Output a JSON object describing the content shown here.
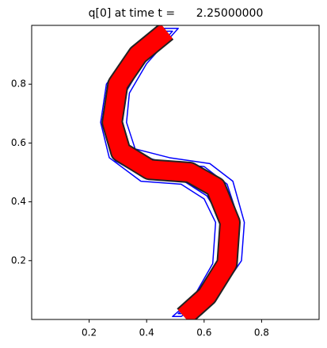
{
  "chart_data": {
    "type": "line",
    "title": "q[0] at time t =      2.25000000",
    "xlim": [
      0,
      1
    ],
    "ylim": [
      0,
      1
    ],
    "xticks": [
      0.2,
      0.4,
      0.6,
      0.8
    ],
    "yticks": [
      0.2,
      0.4,
      0.6,
      0.8
    ],
    "series": [
      {
        "color": "#0000ff",
        "x": [
          0.44,
          0.33,
          0.26,
          0.24,
          0.27,
          0.38,
          0.52,
          0.6,
          0.64,
          0.63,
          0.56,
          0.49,
          0.52,
          0.66,
          0.73,
          0.74,
          0.7,
          0.62,
          0.48,
          0.36,
          0.33,
          0.34,
          0.4,
          0.51,
          0.44
        ],
        "values": [
          0.99,
          0.9,
          0.8,
          0.67,
          0.55,
          0.47,
          0.46,
          0.41,
          0.33,
          0.19,
          0.07,
          0.01,
          0.01,
          0.1,
          0.2,
          0.33,
          0.47,
          0.53,
          0.55,
          0.58,
          0.67,
          0.77,
          0.87,
          0.99,
          0.99
        ]
      },
      {
        "color": "#0000ff",
        "x": [
          0.46,
          0.35,
          0.27,
          0.26,
          0.29,
          0.4,
          0.53,
          0.61,
          0.66,
          0.65,
          0.58,
          0.51,
          0.54,
          0.64,
          0.71,
          0.72,
          0.68,
          0.6,
          0.47,
          0.34,
          0.31,
          0.32,
          0.38,
          0.49,
          0.46
        ],
        "values": [
          0.98,
          0.89,
          0.79,
          0.66,
          0.54,
          0.48,
          0.47,
          0.42,
          0.34,
          0.2,
          0.08,
          0.02,
          0.02,
          0.11,
          0.21,
          0.34,
          0.46,
          0.52,
          0.53,
          0.57,
          0.66,
          0.76,
          0.86,
          0.98,
          0.98
        ]
      },
      {
        "color": "#ff0000",
        "x": [
          0.47,
          0.37,
          0.3,
          0.28,
          0.31,
          0.41,
          0.55,
          0.64,
          0.69,
          0.68,
          0.61,
          0.53
        ],
        "values": [
          0.98,
          0.9,
          0.8,
          0.67,
          0.57,
          0.51,
          0.5,
          0.45,
          0.33,
          0.19,
          0.08,
          0.01
        ]
      }
    ]
  }
}
